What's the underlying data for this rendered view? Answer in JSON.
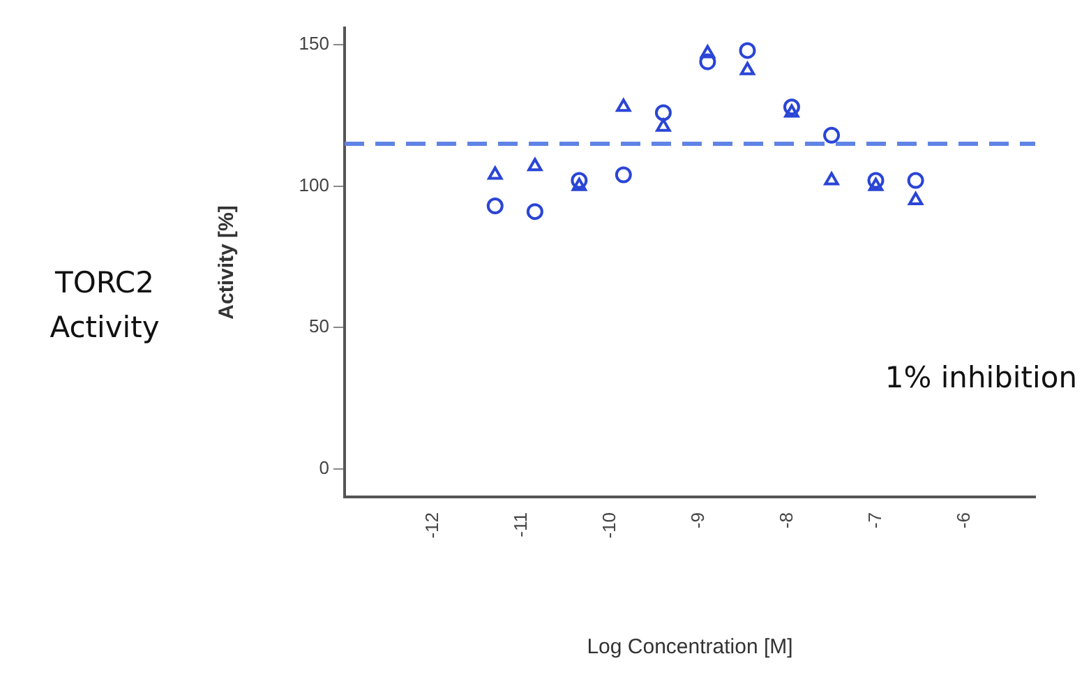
{
  "chart_data": {
    "type": "scatter",
    "xlabel": "Log Concentration [M]",
    "ylabel": "Activity [%]",
    "annotations": [
      "TORC2\nActivity",
      "1% inhibition"
    ],
    "x": [
      -11.3,
      -10.85,
      -10.35,
      -9.85,
      -9.4,
      -8.9,
      -8.45,
      -7.95,
      -7.5,
      -7.0,
      -6.55
    ],
    "series": [
      {
        "marker": "triangle",
        "color": "#2a45d6",
        "values": [
          104,
          107,
          100,
          128,
          121,
          147,
          141,
          126,
          102,
          100,
          95
        ]
      },
      {
        "marker": "circle",
        "color": "#2a45d6",
        "values": [
          93,
          91,
          102,
          104,
          126,
          144,
          148,
          128,
          118,
          102,
          102
        ]
      }
    ],
    "ref_lines": [
      {
        "axis": "y",
        "value": 115,
        "color": "#5f83e6",
        "line_style": "dashed"
      }
    ],
    "xlim": [
      -13,
      -5.2
    ],
    "xticks": [
      -12,
      -11,
      -10,
      -9,
      -8,
      -7,
      -6
    ],
    "ylim": [
      -10,
      156
    ],
    "yticks": [
      0,
      50,
      100,
      150
    ],
    "grid": false,
    "legend": false
  }
}
